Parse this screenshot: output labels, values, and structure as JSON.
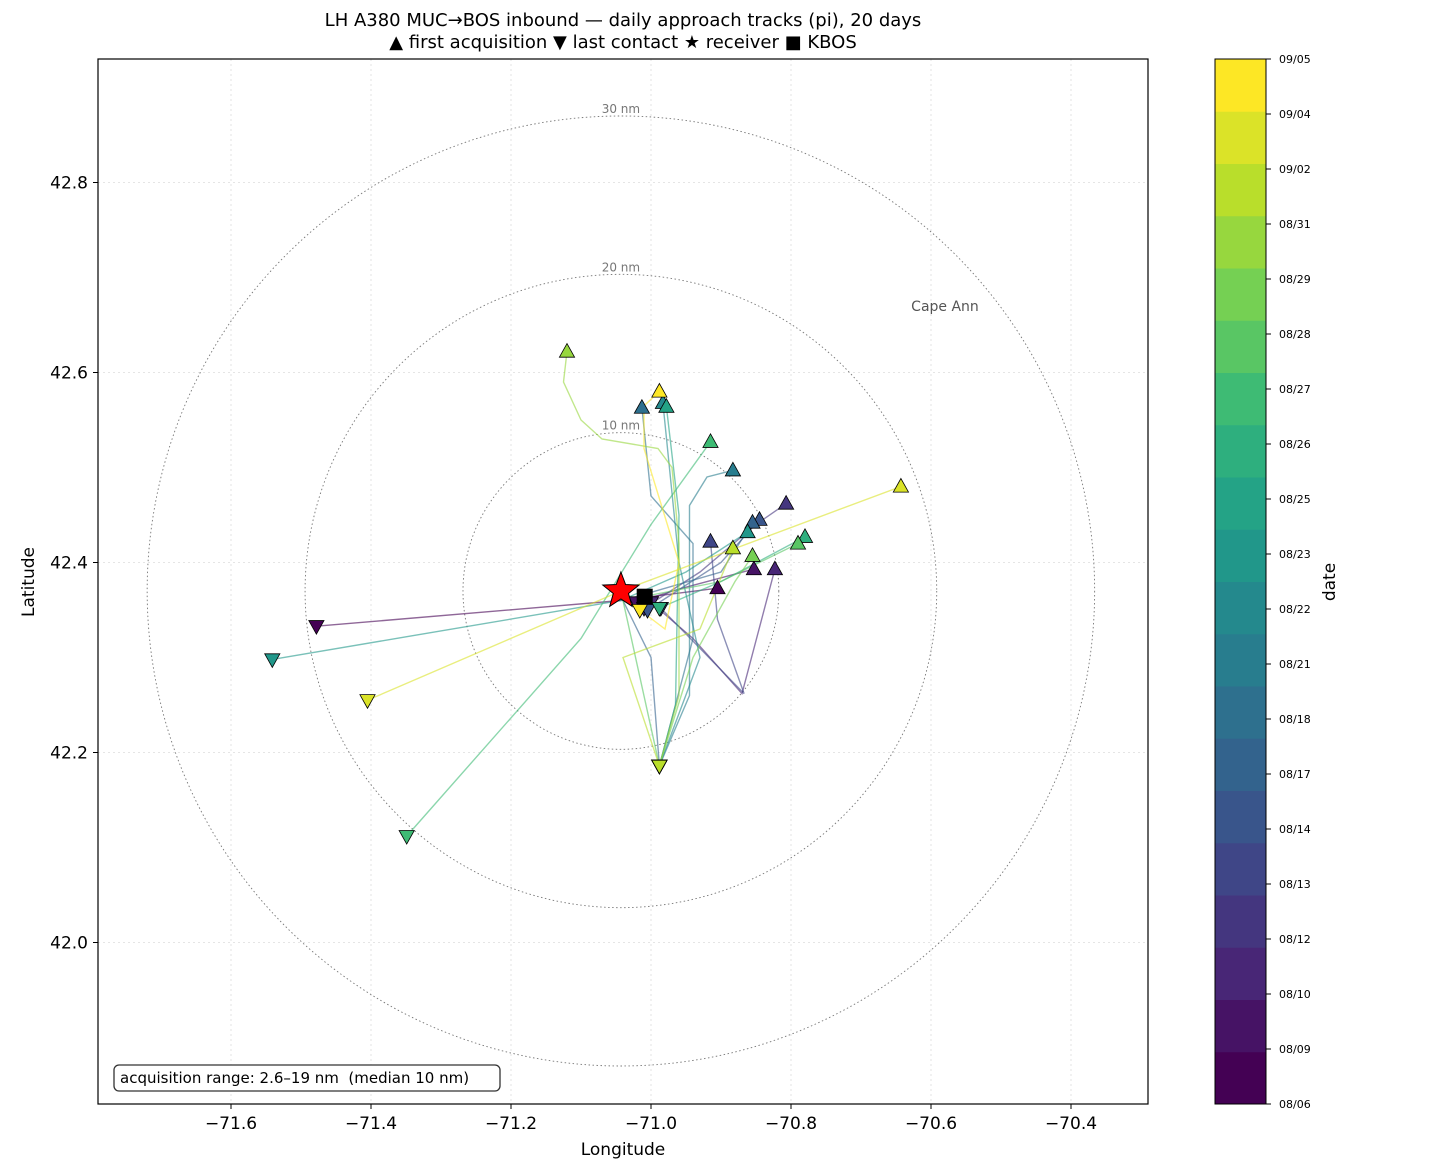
{
  "chart_data": {
    "type": "scatter",
    "title": "LH A380 MUC→BOS inbound — daily approach tracks (pi), 20 days",
    "subtitle": "▲ first acquisition   ▼ last contact   ★ receiver   ■ KBOS",
    "xlabel": "Longitude",
    "ylabel": "Latitude",
    "xlim": [
      -71.79,
      -70.29
    ],
    "ylim": [
      41.83,
      42.93
    ],
    "xticks": [
      -71.6,
      -71.4,
      -71.2,
      -71.0,
      -70.8,
      -70.6,
      -70.4
    ],
    "xtick_labels": [
      "−71.6",
      "−71.4",
      "−71.2",
      "−71.0",
      "−70.8",
      "−70.6",
      "−70.4"
    ],
    "yticks": [
      42.0,
      42.2,
      42.4,
      42.6,
      42.8
    ],
    "ytick_labels": [
      "42.0",
      "42.2",
      "42.4",
      "42.6",
      "42.8"
    ],
    "grid": true,
    "receiver": {
      "lon": -71.043,
      "lat": 42.37,
      "color": "#ff0000"
    },
    "kbos": {
      "lon": -71.009,
      "lat": 42.364
    },
    "range_rings": [
      {
        "nm": 10,
        "label": "10 nm"
      },
      {
        "nm": 20,
        "label": "20 nm"
      },
      {
        "nm": 30,
        "label": "30 nm"
      }
    ],
    "place_label": {
      "text": "Cape Ann",
      "lon": -70.58,
      "lat": 42.665
    },
    "annotation": "acquisition range: 2.6–19 nm  (median 10 nm)",
    "colorbar": {
      "label": "date",
      "colormap": "viridis",
      "tick_labels": [
        "08/06",
        "08/09",
        "08/10",
        "08/12",
        "08/13",
        "08/14",
        "08/17",
        "08/18",
        "08/21",
        "08/22",
        "08/23",
        "08/25",
        "08/26",
        "08/27",
        "08/28",
        "08/29",
        "08/31",
        "09/02",
        "09/04",
        "09/05"
      ]
    },
    "series": [
      {
        "date": "08/06",
        "first": [
          -70.905,
          42.373
        ],
        "last": [
          -71.478,
          42.333
        ],
        "track": [
          [
            -70.905,
            42.373
          ],
          [
            -71.043,
            42.36
          ],
          [
            -71.478,
            42.333
          ]
        ]
      },
      {
        "date": "08/09",
        "first": [
          -70.853,
          42.393
        ],
        "last": [
          -71.021,
          42.358
        ],
        "track": [
          [
            -70.853,
            42.393
          ],
          [
            -70.96,
            42.372
          ],
          [
            -71.021,
            42.358
          ]
        ]
      },
      {
        "date": "08/10",
        "first": [
          -70.823,
          42.393
        ],
        "last": [
          -71.0,
          42.358
        ],
        "track": [
          [
            -70.823,
            42.393
          ],
          [
            -70.87,
            42.262
          ],
          [
            -70.94,
            42.32
          ],
          [
            -71.0,
            42.358
          ]
        ]
      },
      {
        "date": "08/12",
        "first": [
          -70.807,
          42.462
        ],
        "last": [
          -71.01,
          42.352
        ],
        "track": [
          [
            -70.807,
            42.462
          ],
          [
            -70.85,
            42.44
          ],
          [
            -70.93,
            42.39
          ],
          [
            -71.01,
            42.352
          ]
        ]
      },
      {
        "date": "08/13",
        "first": [
          -70.915,
          42.422
        ],
        "last": [
          -70.986,
          42.352
        ],
        "track": [
          [
            -70.915,
            42.422
          ],
          [
            -70.905,
            42.34
          ],
          [
            -70.867,
            42.262
          ],
          [
            -70.986,
            42.352
          ]
        ]
      },
      {
        "date": "08/14",
        "first": [
          -70.845,
          42.445
        ],
        "last": [
          -71.005,
          42.35
        ],
        "track": [
          [
            -70.845,
            42.445
          ],
          [
            -70.9,
            42.4
          ],
          [
            -71.005,
            42.35
          ]
        ]
      },
      {
        "date": "08/17",
        "first": [
          -70.855,
          42.442
        ],
        "last": [
          -70.988,
          42.186
        ],
        "track": [
          [
            -70.855,
            42.442
          ],
          [
            -70.9,
            42.39
          ],
          [
            -71.04,
            42.36
          ],
          [
            -71.0,
            42.3
          ],
          [
            -70.988,
            42.186
          ]
        ]
      },
      {
        "date": "08/18",
        "first": [
          -71.013,
          42.563
        ],
        "last": [
          -70.988,
          42.186
        ],
        "track": [
          [
            -71.013,
            42.563
          ],
          [
            -71.0,
            42.47
          ],
          [
            -70.94,
            42.42
          ],
          [
            -70.94,
            42.32
          ],
          [
            -70.988,
            42.186
          ]
        ]
      },
      {
        "date": "08/21",
        "first": [
          -70.883,
          42.497
        ],
        "last": [
          -70.988,
          42.186
        ],
        "track": [
          [
            -70.883,
            42.497
          ],
          [
            -70.92,
            42.49
          ],
          [
            -70.945,
            42.46
          ],
          [
            -70.945,
            42.26
          ],
          [
            -70.988,
            42.186
          ]
        ]
      },
      {
        "date": "08/22",
        "first": [
          -70.983,
          42.568
        ],
        "last": [
          -70.988,
          42.186
        ],
        "track": [
          [
            -70.983,
            42.568
          ],
          [
            -70.96,
            42.4
          ],
          [
            -70.93,
            42.3
          ],
          [
            -70.988,
            42.186
          ]
        ]
      },
      {
        "date": "08/23",
        "first": [
          -70.862,
          42.432
        ],
        "last": [
          -71.541,
          42.298
        ],
        "track": [
          [
            -70.862,
            42.432
          ],
          [
            -70.95,
            42.39
          ],
          [
            -71.043,
            42.36
          ],
          [
            -71.541,
            42.298
          ]
        ]
      },
      {
        "date": "08/25",
        "first": [
          -70.978,
          42.564
        ],
        "last": [
          -70.988,
          42.186
        ],
        "track": [
          [
            -70.978,
            42.564
          ],
          [
            -70.96,
            42.45
          ],
          [
            -70.965,
            42.25
          ],
          [
            -70.988,
            42.186
          ]
        ]
      },
      {
        "date": "08/26",
        "first": [
          -70.78,
          42.427
        ],
        "last": [
          -70.988,
          42.352
        ],
        "track": [
          [
            -70.78,
            42.427
          ],
          [
            -70.9,
            42.38
          ],
          [
            -70.988,
            42.352
          ]
        ]
      },
      {
        "date": "08/27",
        "first": [
          -70.915,
          42.527
        ],
        "last": [
          -71.349,
          42.112
        ],
        "track": [
          [
            -70.915,
            42.527
          ],
          [
            -71.0,
            42.44
          ],
          [
            -71.1,
            42.32
          ],
          [
            -71.349,
            42.112
          ]
        ]
      },
      {
        "date": "08/28",
        "first": [
          -70.79,
          42.42
        ],
        "last": [
          -70.988,
          42.186
        ],
        "track": [
          [
            -70.79,
            42.42
          ],
          [
            -70.9,
            42.38
          ],
          [
            -71.04,
            42.36
          ],
          [
            -70.988,
            42.186
          ]
        ]
      },
      {
        "date": "08/29",
        "first": [
          -70.855,
          42.407
        ],
        "last": [
          -70.988,
          42.186
        ],
        "track": [
          [
            -70.855,
            42.407
          ],
          [
            -70.88,
            42.38
          ],
          [
            -70.94,
            42.3
          ],
          [
            -70.988,
            42.186
          ]
        ]
      },
      {
        "date": "08/31",
        "first": [
          -71.12,
          42.622
        ],
        "last": [
          -70.988,
          42.186
        ],
        "track": [
          [
            -71.12,
            42.622
          ],
          [
            -71.125,
            42.59
          ],
          [
            -71.1,
            42.55
          ],
          [
            -71.07,
            42.53
          ],
          [
            -70.99,
            42.52
          ],
          [
            -70.97,
            42.5
          ],
          [
            -70.96,
            42.42
          ],
          [
            -70.96,
            42.26
          ],
          [
            -70.988,
            42.186
          ]
        ]
      },
      {
        "date": "09/02",
        "first": [
          -70.883,
          42.415
        ],
        "last": [
          -70.988,
          42.186
        ],
        "track": [
          [
            -70.883,
            42.415
          ],
          [
            -70.93,
            42.33
          ],
          [
            -71.04,
            42.3
          ],
          [
            -70.988,
            42.186
          ]
        ]
      },
      {
        "date": "09/04",
        "first": [
          -70.643,
          42.48
        ],
        "last": [
          -71.405,
          42.255
        ],
        "track": [
          [
            -70.643,
            42.48
          ],
          [
            -71.043,
            42.37
          ],
          [
            -71.405,
            42.255
          ]
        ]
      },
      {
        "date": "09/05",
        "first": [
          -70.988,
          42.58
        ],
        "last": [
          -71.016,
          42.35
        ],
        "track": [
          [
            -70.988,
            42.58
          ],
          [
            -71.01,
            42.565
          ],
          [
            -71.01,
            42.52
          ],
          [
            -70.96,
            42.4
          ],
          [
            -70.98,
            42.33
          ],
          [
            -71.016,
            42.35
          ]
        ]
      }
    ]
  }
}
